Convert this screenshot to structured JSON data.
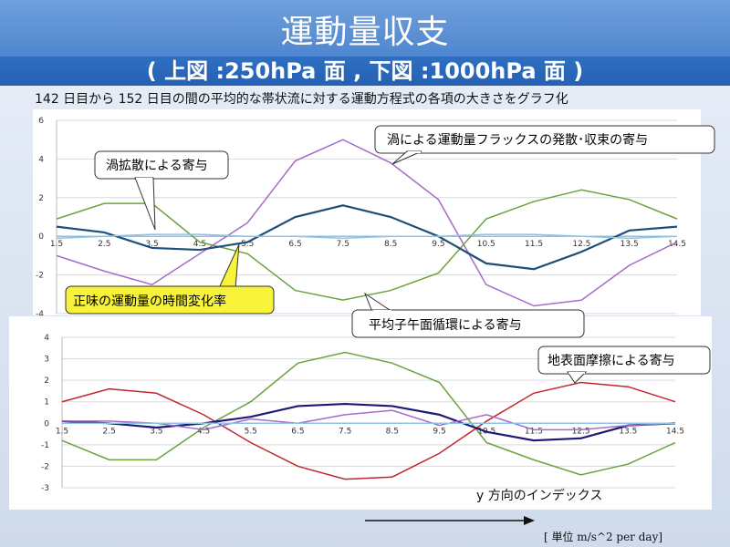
{
  "slide": {
    "title": "運動量収支",
    "subtitle": "( 上図 :250hPa 面 , 下図 :1000hPa 面 )",
    "description": "142 日目から 152 日目の間の平均的な帯状流に対する運動方程式の各項の大きさをグラフ化",
    "x_axis_caption": "y 方向のインデックス",
    "unit_label": "[ 単位  m/s^2 per day]"
  },
  "callouts_top": {
    "eddy_flux": "渦による運動量フラックスの発散･収束の寄与",
    "eddy_diffusion": "渦拡散による寄与",
    "net_change": "正味の運動量の時間変化率",
    "meridional_circulation": "平均子午面循環による寄与"
  },
  "callouts_bottom": {
    "surface_friction": "地表面摩擦による寄与"
  },
  "colors": {
    "title_band": "#5b90d6",
    "subtitle_band": "#2a66b9",
    "purple": "#a66bc8",
    "green": "#6aa33b",
    "navy": "#1f4e79",
    "lightblue": "#8fc3e6",
    "darknavy": "#1e1a78",
    "red": "#c0262d",
    "zero_line": "#6fb3e0",
    "highlight": "#f7f33a"
  },
  "chart_data": [
    {
      "type": "line",
      "title": "",
      "x": [
        1.5,
        2.5,
        3.5,
        4.5,
        5.5,
        6.5,
        7.5,
        8.5,
        9.5,
        10.5,
        11.5,
        12.5,
        13.5,
        14.5
      ],
      "x_tick_labels": [
        "1.5",
        "2.5",
        "3.5",
        "4.5",
        "5.5",
        "6.5",
        "7.5",
        "8.5",
        "9.5",
        "10.5",
        "11.5",
        "12.5",
        "13.5",
        "14.5"
      ],
      "y_tick_labels": [
        "-4",
        "-2",
        "0",
        "2",
        "4",
        "6"
      ],
      "xlim": [
        1.5,
        14.5
      ],
      "ylim": [
        -4,
        6
      ],
      "grid": "horizontal",
      "series": [
        {
          "color": "purple",
          "values": [
            -1.0,
            -1.8,
            -2.5,
            -0.9,
            0.7,
            3.9,
            5.0,
            3.8,
            1.9,
            -2.5,
            -3.6,
            -3.3,
            -1.5,
            -0.3
          ]
        },
        {
          "color": "green",
          "values": [
            0.9,
            1.7,
            1.7,
            -0.3,
            -0.9,
            -2.8,
            -3.3,
            -2.8,
            -1.9,
            0.9,
            1.8,
            2.4,
            1.9,
            0.9
          ]
        },
        {
          "color": "navy",
          "values": [
            0.5,
            0.2,
            -0.6,
            -0.7,
            -0.3,
            1.0,
            1.6,
            1.0,
            0.0,
            -1.4,
            -1.7,
            -0.8,
            0.3,
            0.5
          ]
        },
        {
          "color": "lightblue",
          "values": [
            -0.1,
            0.0,
            0.1,
            0.1,
            0.0,
            0.0,
            -0.1,
            0.0,
            0.0,
            0.1,
            0.1,
            0.0,
            -0.1,
            0.0
          ]
        }
      ]
    },
    {
      "type": "line",
      "title": "",
      "x": [
        1.5,
        2.5,
        3.5,
        4.5,
        5.5,
        6.5,
        7.5,
        8.5,
        9.5,
        10.5,
        11.5,
        12.5,
        13.5,
        14.5
      ],
      "x_tick_labels": [
        "1.5",
        "2.5",
        "3.5",
        "4.5",
        "5.5",
        "6.5",
        "7.5",
        "8.5",
        "9.5",
        "10.5",
        "11.5",
        "12.5",
        "13.5",
        "14.5"
      ],
      "y_tick_labels": [
        "-3",
        "-2",
        "-1",
        "0",
        "1",
        "2",
        "3",
        "4"
      ],
      "xlim": [
        1.5,
        14.5
      ],
      "ylim": [
        -3,
        4
      ],
      "grid": "horizontal",
      "series": [
        {
          "color": "red",
          "values": [
            1.0,
            1.6,
            1.4,
            0.4,
            -0.9,
            -2.0,
            -2.6,
            -2.5,
            -1.4,
            0.1,
            1.4,
            1.9,
            1.7,
            1.0
          ]
        },
        {
          "color": "green",
          "values": [
            -0.8,
            -1.7,
            -1.7,
            -0.2,
            1.0,
            2.8,
            3.3,
            2.8,
            1.9,
            -0.9,
            -1.7,
            -2.4,
            -1.9,
            -0.9
          ]
        },
        {
          "color": "darknavy",
          "values": [
            0.1,
            0.0,
            -0.2,
            0.0,
            0.3,
            0.8,
            0.9,
            0.8,
            0.4,
            -0.4,
            -0.8,
            -0.7,
            -0.1,
            0.0
          ]
        },
        {
          "color": "purple",
          "values": [
            0.1,
            0.1,
            0.0,
            -0.3,
            0.2,
            0.0,
            0.4,
            0.6,
            -0.1,
            0.4,
            -0.3,
            -0.3,
            -0.1,
            0.0
          ]
        },
        {
          "color": "lightblue",
          "values": [
            0.0,
            0.0,
            0.0,
            0.0,
            0.0,
            0.0,
            0.0,
            0.0,
            0.0,
            0.0,
            0.0,
            0.0,
            0.0,
            0.0
          ]
        }
      ]
    }
  ]
}
